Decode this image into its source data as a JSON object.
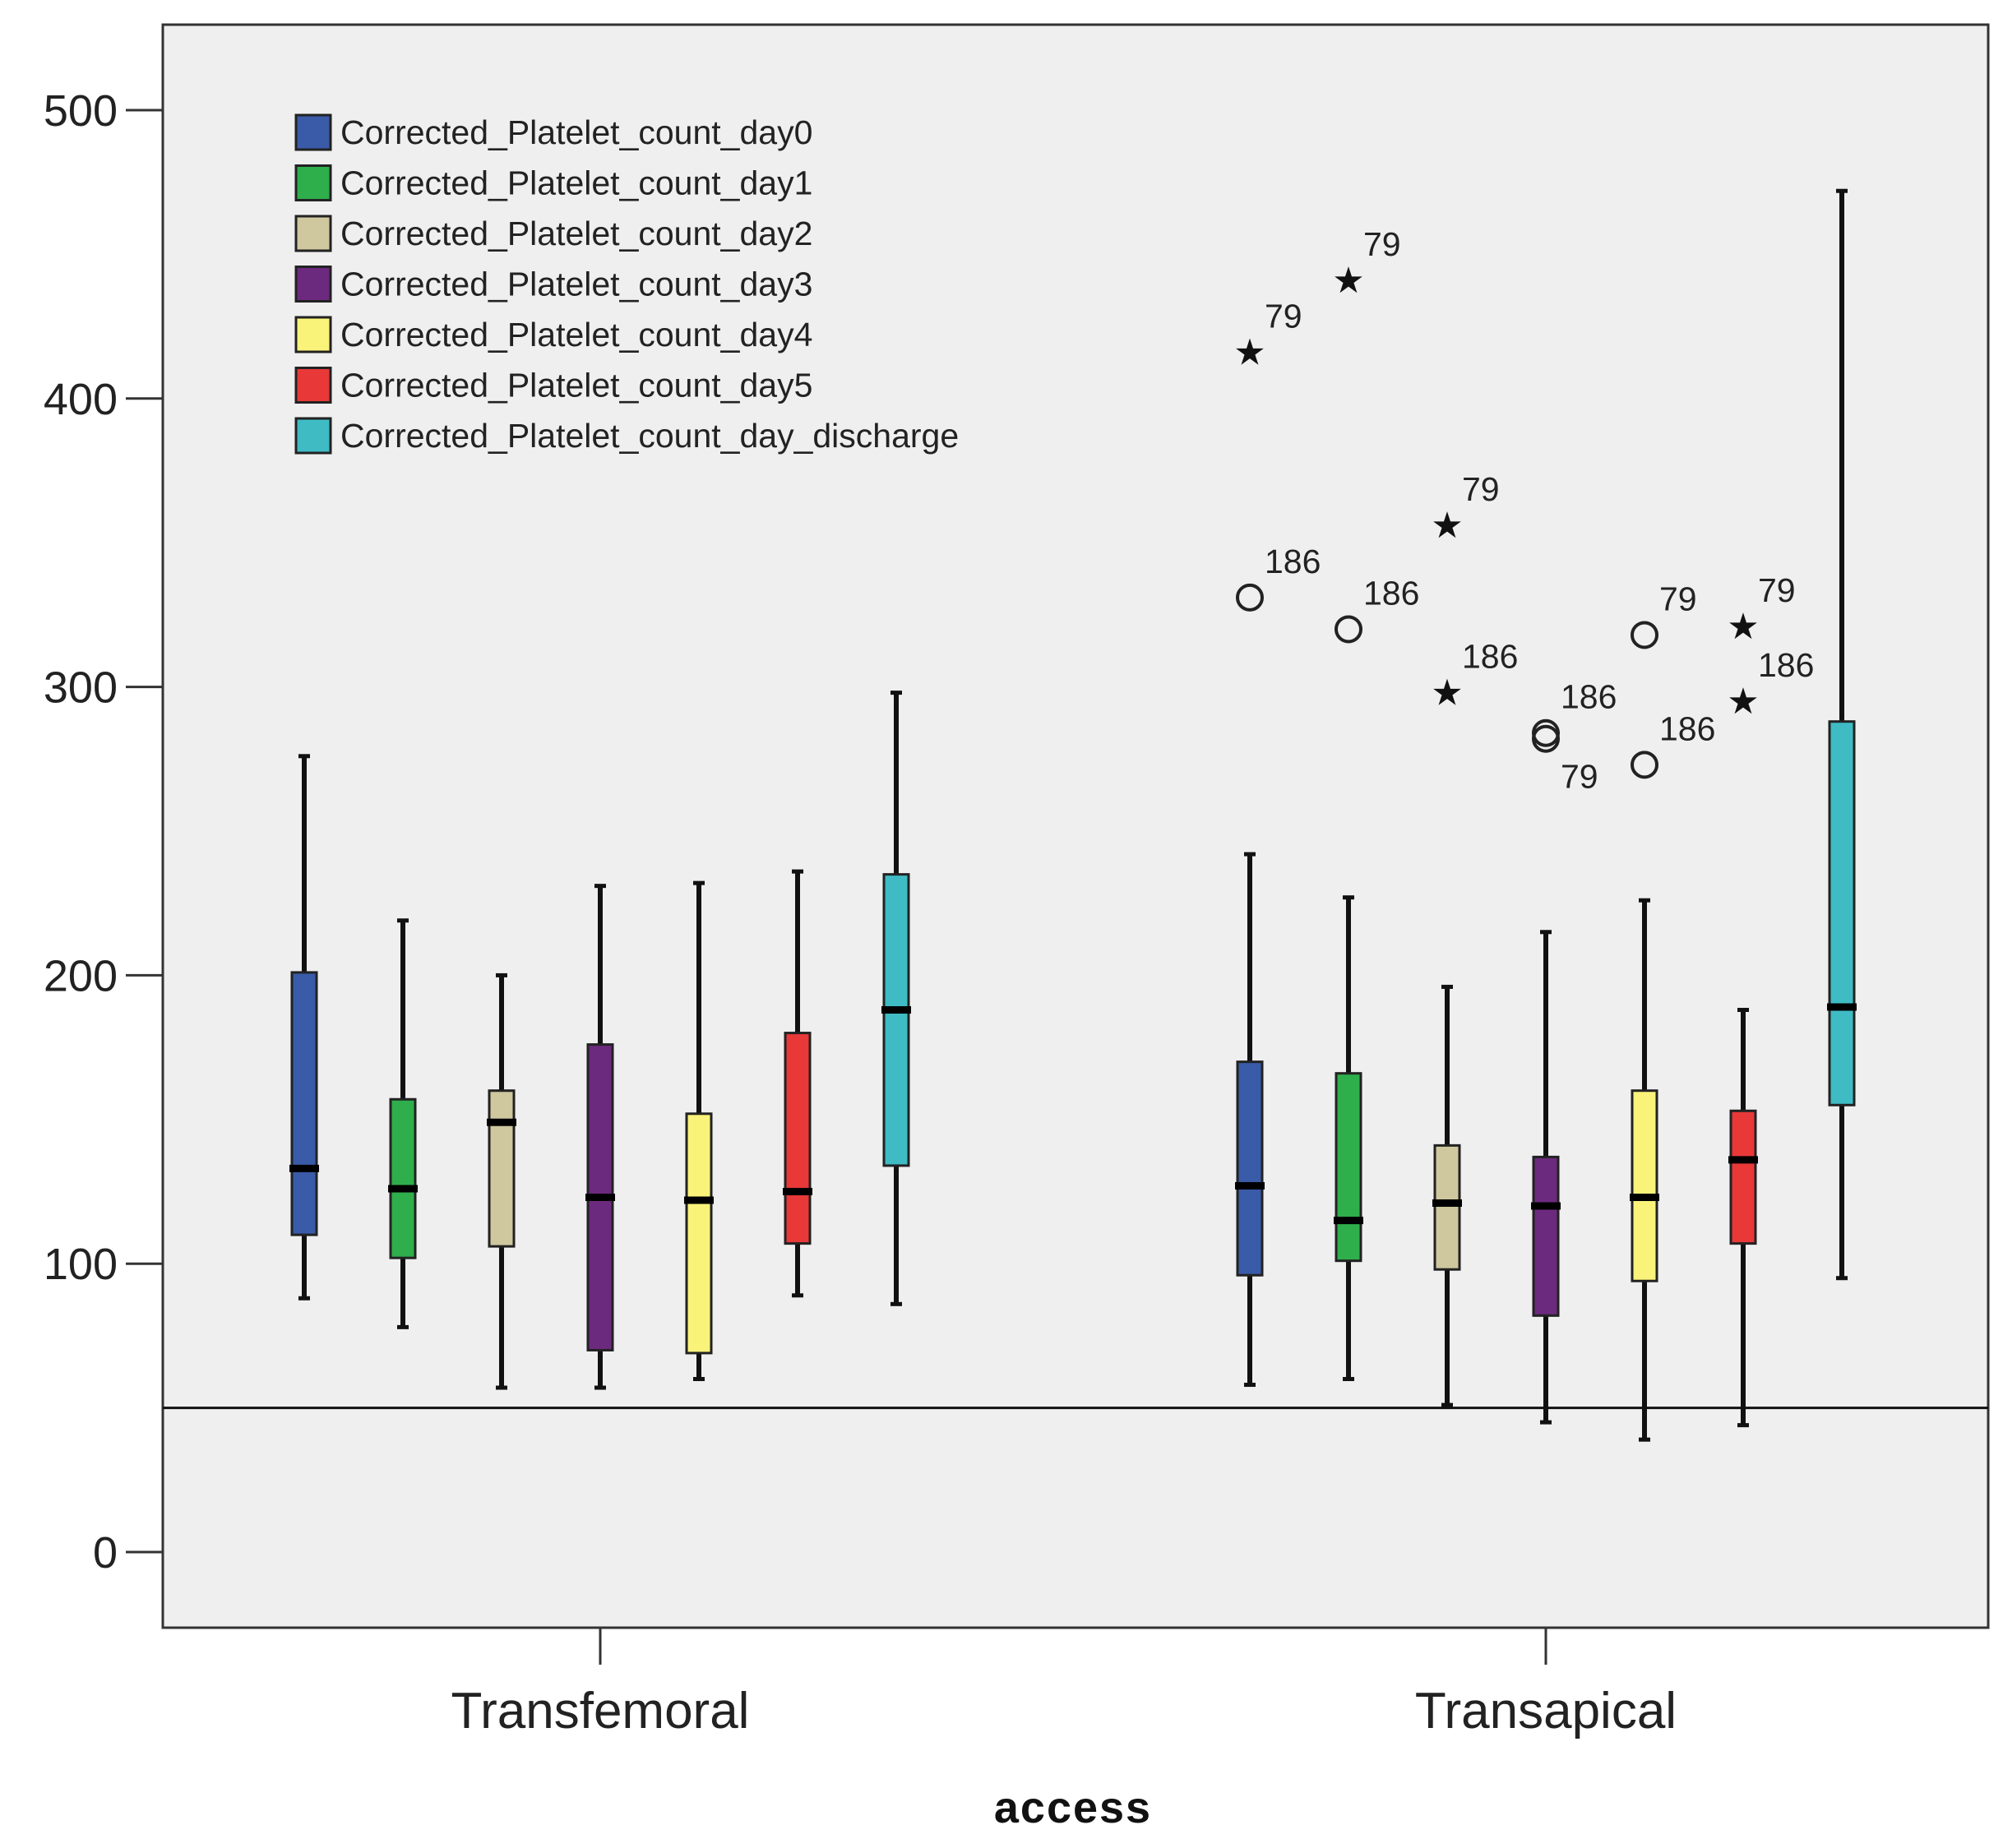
{
  "chart_data": {
    "type": "boxplot",
    "xlabel": "access",
    "ylabel": "",
    "ylim": [
      -25,
      530
    ],
    "yticks": [
      0,
      100,
      200,
      300,
      400,
      500
    ],
    "grid": false,
    "legend_placement": "top-left",
    "reference_line": 50,
    "categories": [
      "Transfemoral",
      "Transapical"
    ],
    "series": [
      {
        "name": "Corrected_Platelet_count_day0",
        "color": "#3A5BA8",
        "boxes": [
          {
            "category": "Transfemoral",
            "whisker_low": 88,
            "q1": 110,
            "median": 133,
            "q3": 201,
            "whisker_high": 276
          },
          {
            "category": "Transapical",
            "whisker_low": 58,
            "q1": 96,
            "median": 127,
            "q3": 170,
            "whisker_high": 242
          }
        ]
      },
      {
        "name": "Corrected_Platelet_count_day1",
        "color": "#2FAE4C",
        "boxes": [
          {
            "category": "Transfemoral",
            "whisker_low": 78,
            "q1": 102,
            "median": 126,
            "q3": 157,
            "whisker_high": 219
          },
          {
            "category": "Transapical",
            "whisker_low": 60,
            "q1": 101,
            "median": 115,
            "q3": 166,
            "whisker_high": 227
          }
        ]
      },
      {
        "name": "Corrected_Platelet_count_day2",
        "color": "#CFC79E",
        "boxes": [
          {
            "category": "Transfemoral",
            "whisker_low": 57,
            "q1": 106,
            "median": 149,
            "q3": 160,
            "whisker_high": 200
          },
          {
            "category": "Transapical",
            "whisker_low": 51,
            "q1": 98,
            "median": 121,
            "q3": 141,
            "whisker_high": 196
          }
        ]
      },
      {
        "name": "Corrected_Platelet_count_day3",
        "color": "#6C2A7E",
        "boxes": [
          {
            "category": "Transfemoral",
            "whisker_low": 57,
            "q1": 70,
            "median": 123,
            "q3": 176,
            "whisker_high": 231
          },
          {
            "category": "Transapical",
            "whisker_low": 45,
            "q1": 82,
            "median": 120,
            "q3": 137,
            "whisker_high": 215
          }
        ]
      },
      {
        "name": "Corrected_Platelet_count_day4",
        "color": "#FAF37A",
        "boxes": [
          {
            "category": "Transfemoral",
            "whisker_low": 60,
            "q1": 69,
            "median": 122,
            "q3": 152,
            "whisker_high": 232
          },
          {
            "category": "Transapical",
            "whisker_low": 39,
            "q1": 94,
            "median": 123,
            "q3": 160,
            "whisker_high": 226
          }
        ]
      },
      {
        "name": "Corrected_Platelet_count_day5",
        "color": "#E83838",
        "boxes": [
          {
            "category": "Transfemoral",
            "whisker_low": 89,
            "q1": 107,
            "median": 125,
            "q3": 180,
            "whisker_high": 236
          },
          {
            "category": "Transapical",
            "whisker_low": 44,
            "q1": 107,
            "median": 136,
            "q3": 153,
            "whisker_high": 188
          }
        ]
      },
      {
        "name": "Corrected_Platelet_count_day_discharge",
        "color": "#3FBBC4",
        "boxes": [
          {
            "category": "Transfemoral",
            "whisker_low": 86,
            "q1": 134,
            "median": 188,
            "q3": 235,
            "whisker_high": 298
          },
          {
            "category": "Transapical",
            "whisker_low": 95,
            "q1": 155,
            "median": 189,
            "q3": 288,
            "whisker_high": 472
          }
        ]
      }
    ],
    "outliers": [
      {
        "series_index": 0,
        "category": "Transapical",
        "value": 331,
        "marker": "circle",
        "label": "186",
        "label_pos": "upper-right"
      },
      {
        "series_index": 0,
        "category": "Transapical",
        "value": 416,
        "marker": "star",
        "label": "79",
        "label_pos": "upper-right"
      },
      {
        "series_index": 1,
        "category": "Transapical",
        "value": 320,
        "marker": "circle",
        "label": "186",
        "label_pos": "upper-right"
      },
      {
        "series_index": 1,
        "category": "Transapical",
        "value": 441,
        "marker": "star",
        "label": "79",
        "label_pos": "upper-right"
      },
      {
        "series_index": 2,
        "category": "Transapical",
        "value": 298,
        "marker": "star",
        "label": "186",
        "label_pos": "upper-right"
      },
      {
        "series_index": 2,
        "category": "Transapical",
        "value": 356,
        "marker": "star",
        "label": "79",
        "label_pos": "upper-right"
      },
      {
        "series_index": 3,
        "category": "Transapical",
        "value": 284,
        "marker": "circle",
        "label": "186",
        "label_pos": "upper-right"
      },
      {
        "series_index": 3,
        "category": "Transapical",
        "value": 282,
        "marker": "circle",
        "label": "79",
        "label_pos": "lower-right"
      },
      {
        "series_index": 4,
        "category": "Transapical",
        "value": 318,
        "marker": "circle",
        "label": "79",
        "label_pos": "upper-right"
      },
      {
        "series_index": 4,
        "category": "Transapical",
        "value": 273,
        "marker": "circle",
        "label": "186",
        "label_pos": "upper-right"
      },
      {
        "series_index": 5,
        "category": "Transapical",
        "value": 321,
        "marker": "star",
        "label": "79",
        "label_pos": "upper-right"
      },
      {
        "series_index": 5,
        "category": "Transapical",
        "value": 295,
        "marker": "star",
        "label": "186",
        "label_pos": "upper-right"
      }
    ]
  }
}
